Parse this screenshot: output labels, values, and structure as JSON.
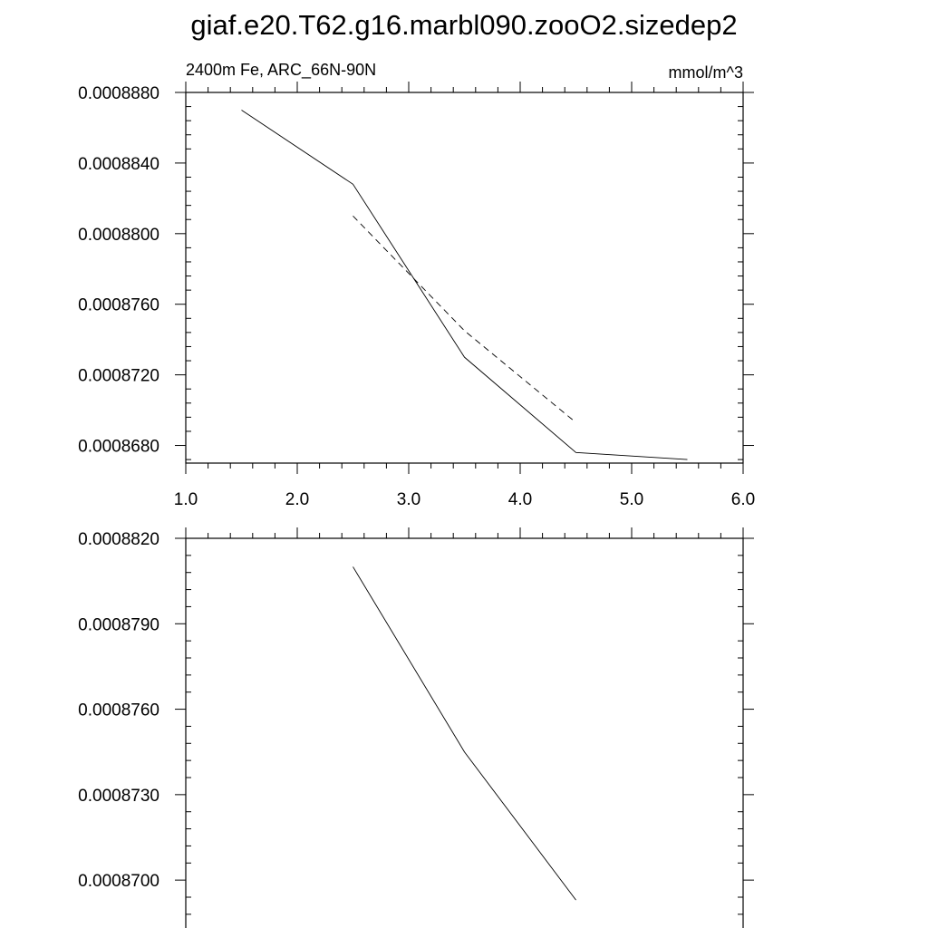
{
  "title": "giaf.e20.T62.g16.marbl090.zooO2.sizedep2",
  "chart_data": [
    {
      "type": "line",
      "subtitle_left": "2400m Fe, ARC_66N-90N",
      "subtitle_right": "mmol/m^3",
      "xlim": [
        1.0,
        6.0
      ],
      "ylim": [
        0.000867,
        0.000888
      ],
      "x_ticks": [
        1.0,
        2.0,
        3.0,
        4.0,
        5.0,
        6.0
      ],
      "x_tick_labels": [
        "1.0",
        "2.0",
        "3.0",
        "4.0",
        "5.0",
        "6.0"
      ],
      "y_ticks": [
        0.000868,
        0.000872,
        0.000876,
        0.00088,
        0.000884,
        0.000888
      ],
      "y_tick_labels": [
        "0.0008680",
        "0.0008720",
        "0.0008760",
        "0.0008800",
        "0.0008840",
        "0.0008880"
      ],
      "series": [
        {
          "style": "solid",
          "x": [
            1.5,
            2.5,
            3.5,
            4.5,
            5.5
          ],
          "values": [
            0.000887,
            0.0008828,
            0.000873,
            0.0008676,
            0.0008672
          ]
        },
        {
          "style": "dashed",
          "x": [
            2.5,
            3.5,
            4.5
          ],
          "values": [
            0.000881,
            0.0008745,
            0.0008693
          ]
        }
      ]
    },
    {
      "type": "line",
      "xlim": [
        1.0,
        6.0
      ],
      "ylim": [
        0.000868,
        0.000882
      ],
      "x_ticks": [
        1.0,
        2.0,
        3.0,
        4.0,
        5.0,
        6.0
      ],
      "y_ticks": [
        0.00087,
        0.000873,
        0.000876,
        0.000879,
        0.000882
      ],
      "y_tick_labels": [
        "0.0008700",
        "0.0008730",
        "0.0008760",
        "0.0008790",
        "0.0008820"
      ],
      "series": [
        {
          "style": "solid",
          "x": [
            2.5,
            3.5,
            4.5
          ],
          "values": [
            0.000881,
            0.0008745,
            0.0008693
          ]
        }
      ]
    }
  ]
}
